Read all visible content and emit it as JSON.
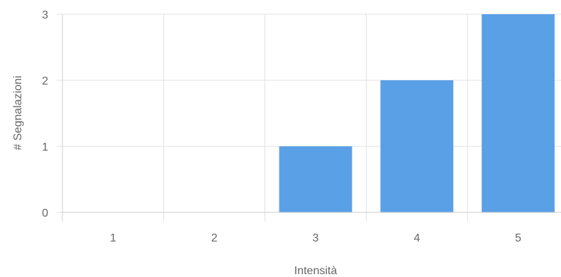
{
  "chart_data": {
    "type": "bar",
    "title": "",
    "xlabel": "Intensità",
    "ylabel": "# Segnalazioni",
    "categories": [
      "1",
      "2",
      "3",
      "4",
      "5"
    ],
    "values": [
      0,
      0,
      1,
      2,
      3
    ],
    "ylim": [
      0,
      3
    ],
    "yticks": [
      "0",
      "1",
      "2",
      "3"
    ],
    "grid": true,
    "legend": "none",
    "bar_color": "#5aa0e6",
    "grid_color": "#e0e0e0"
  }
}
